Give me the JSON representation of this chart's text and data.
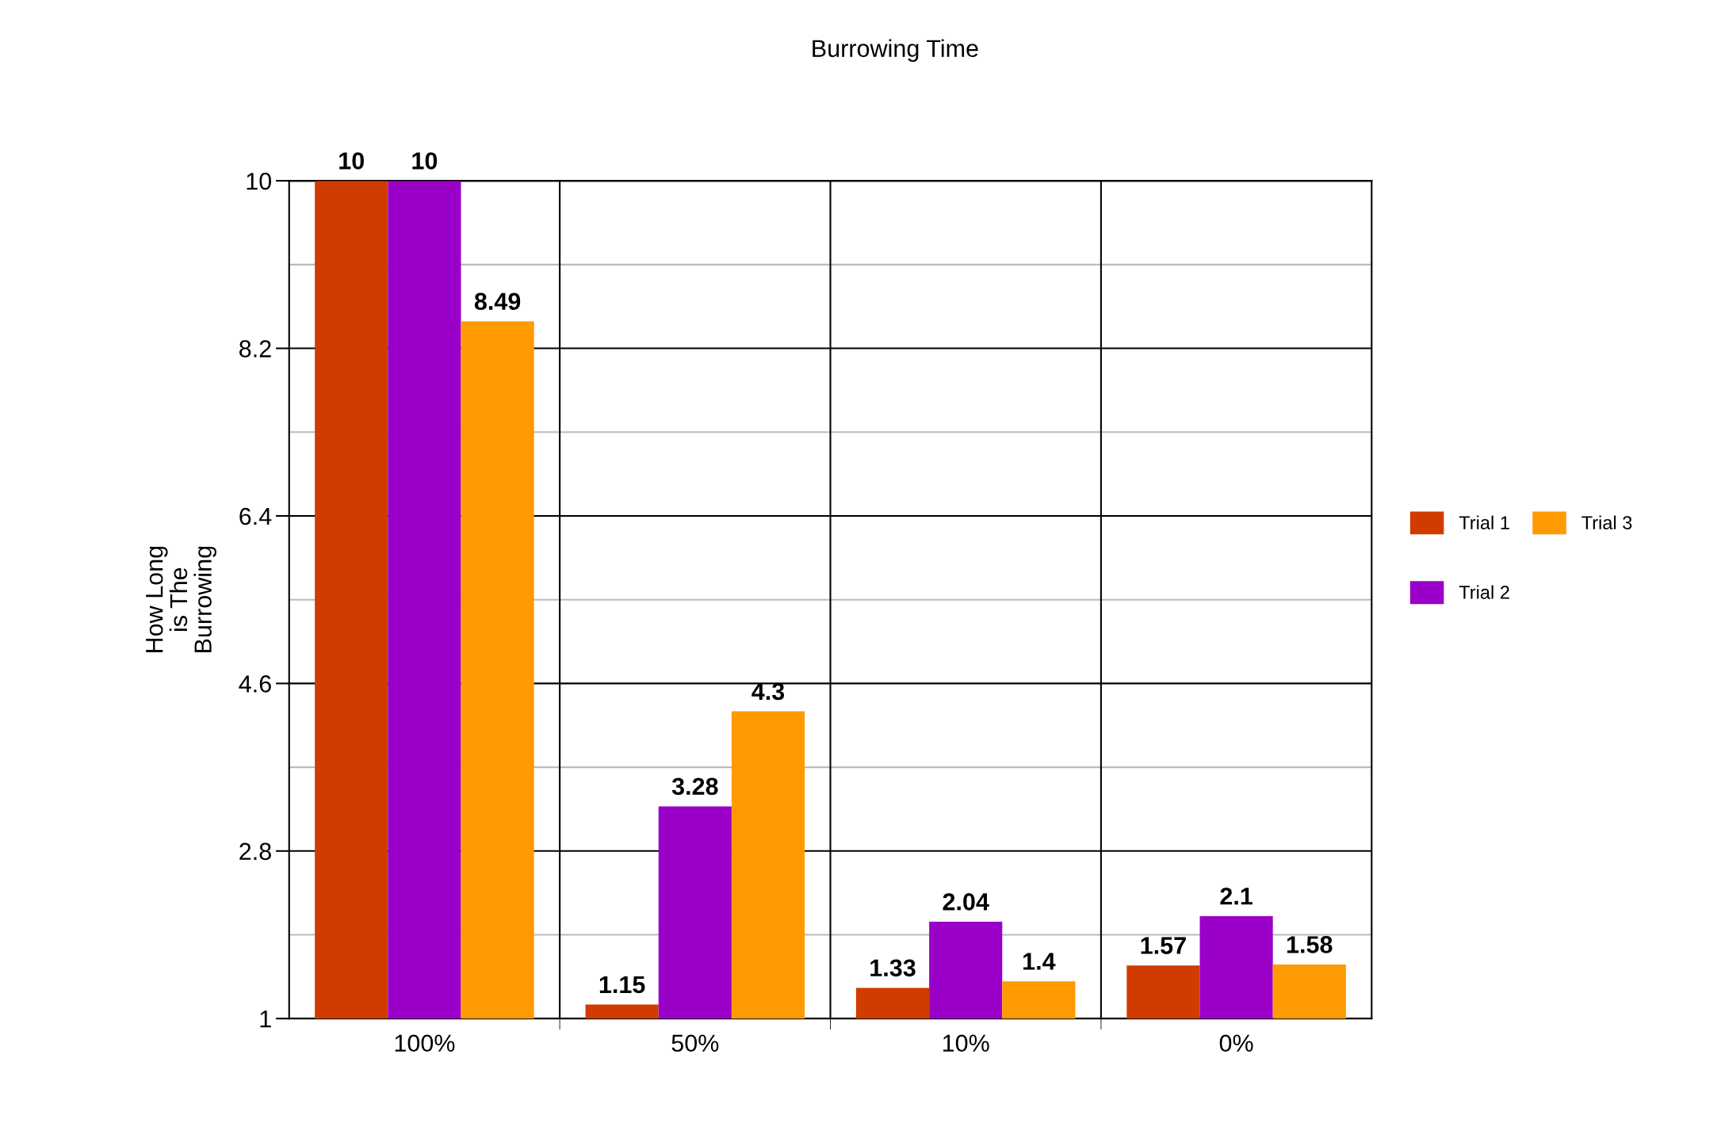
{
  "chart_data": {
    "type": "bar",
    "title": "Burrowing Time",
    "ylabel": "How Long\nis The\nBurrowing",
    "categories": [
      "100%",
      "50%",
      "10%",
      "0%"
    ],
    "series": [
      {
        "name": "Trial 1",
        "color": "#d03c00",
        "values": [
          10,
          1.15,
          1.33,
          1.57
        ]
      },
      {
        "name": "Trial 2",
        "color": "#9a00c8",
        "values": [
          10,
          3.28,
          2.04,
          2.1
        ]
      },
      {
        "name": "Trial 3",
        "color": "#ff9a00",
        "values": [
          8.49,
          4.3,
          1.4,
          1.58
        ]
      }
    ],
    "ylim": [
      1,
      10
    ],
    "yticks": [
      1,
      {
        "value": 1.9,
        "label": null
      },
      2.8,
      {
        "value": 3.7,
        "label": null
      },
      4.6,
      {
        "value": 5.5,
        "label": null
      },
      6.4,
      {
        "value": 7.3,
        "label": null
      },
      8.2,
      {
        "value": 9.1,
        "label": null
      },
      10
    ],
    "grid": true,
    "legend": "right",
    "data_labels": true
  }
}
